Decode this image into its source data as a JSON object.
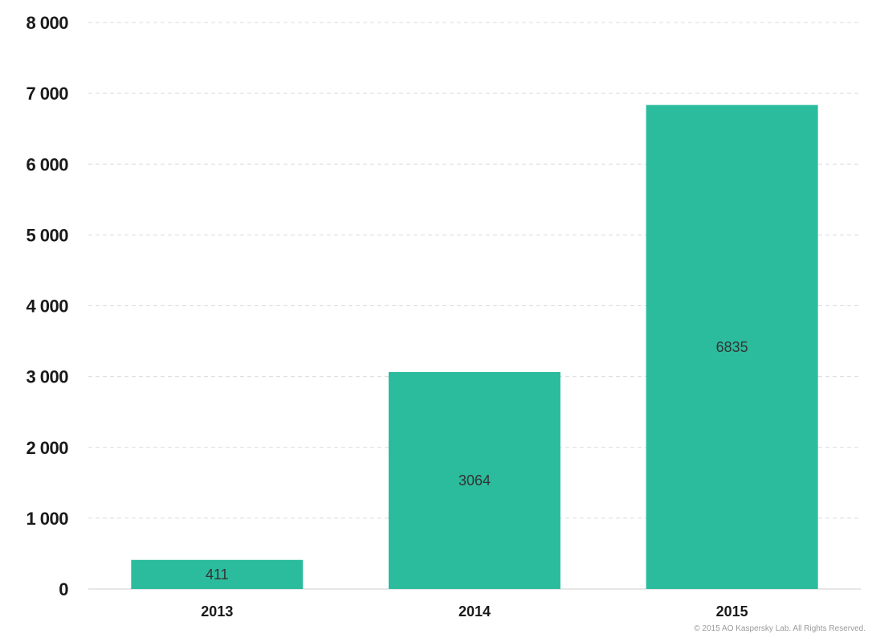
{
  "chart_data": {
    "type": "bar",
    "categories": [
      "2013",
      "2014",
      "2015"
    ],
    "values": [
      411,
      3064,
      6835
    ],
    "data_labels": [
      "411",
      "3064",
      "6835"
    ],
    "ylim": [
      0,
      8000
    ],
    "yticks": [
      0,
      1000,
      2000,
      3000,
      4000,
      5000,
      6000,
      7000,
      8000
    ],
    "ytick_labels": [
      "0",
      "1 000",
      "2 000",
      "3 000",
      "4 000",
      "5 000",
      "6 000",
      "7 000",
      "8 000"
    ],
    "grid": true,
    "legend": "none",
    "bar_color": "#2bbc9d",
    "grid_color": "#dcdcdc"
  },
  "footer": {
    "copyright": "© 2015 AO Kaspersky Lab. All Rights Reserved."
  }
}
